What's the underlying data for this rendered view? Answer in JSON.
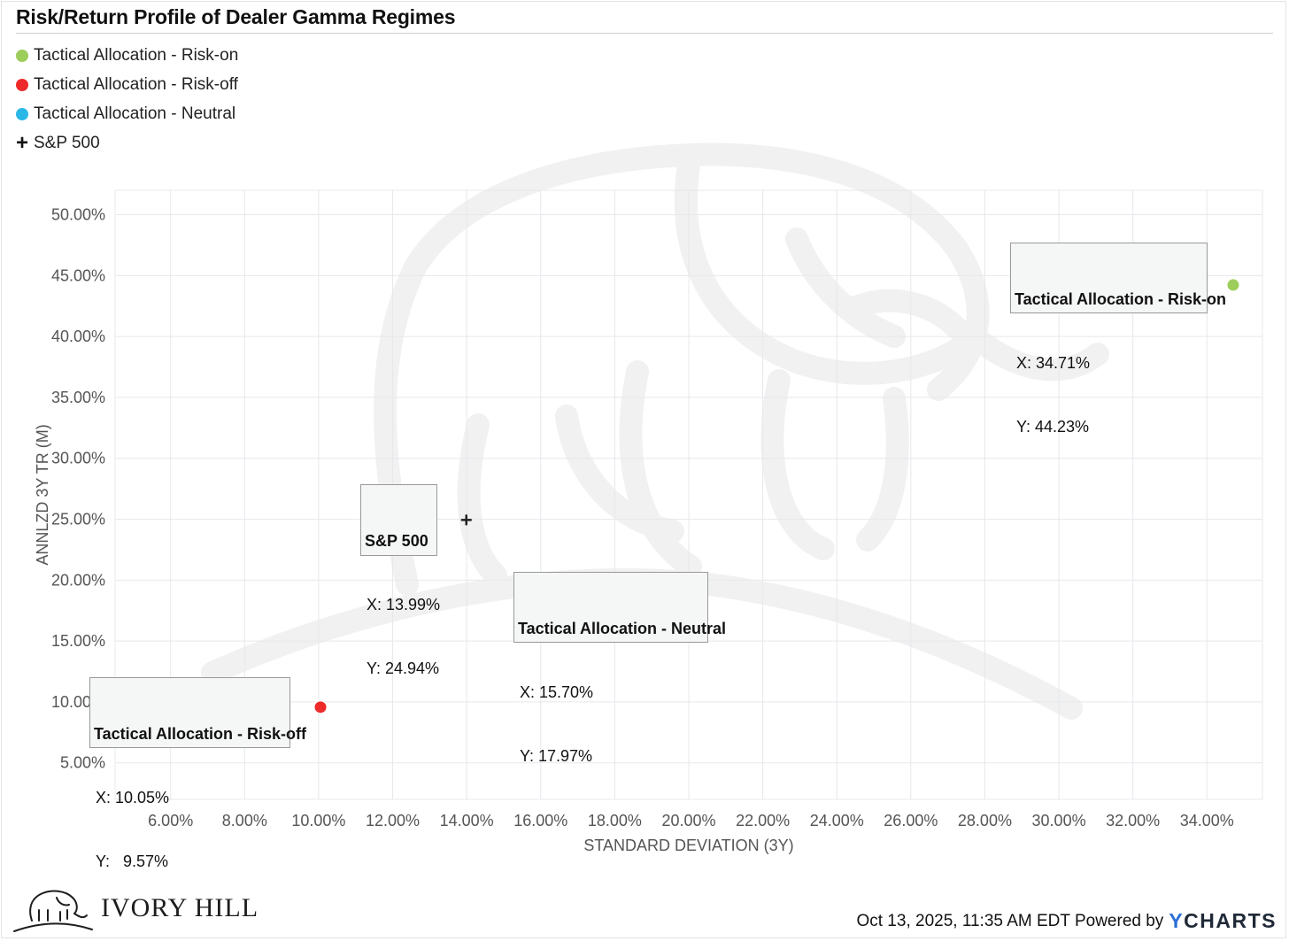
{
  "title": "Risk/Return Profile of Dealer Gamma Regimes",
  "colors": {
    "risk_on": "#9dcd5a",
    "risk_off": "#ee2a2a",
    "neutral": "#2ab7e8",
    "sp500": "#222222"
  },
  "legend": [
    {
      "label": "Tactical Allocation - Risk-on",
      "marker": "circle",
      "color": "#9dcd5a"
    },
    {
      "label": "Tactical Allocation - Risk-off",
      "marker": "circle",
      "color": "#ee2a2a"
    },
    {
      "label": "Tactical Allocation - Neutral",
      "marker": "circle",
      "color": "#2ab7e8"
    },
    {
      "label": "S&P 500",
      "marker": "plus",
      "color": "#222222"
    }
  ],
  "chart_data": {
    "type": "scatter",
    "title": "Risk/Return Profile of Dealer Gamma Regimes",
    "xlabel": "STANDARD DEVIATION (3Y)",
    "ylabel": "ANNLZD 3Y TR (M)",
    "xlim": [
      4.5,
      35.5
    ],
    "ylim": [
      2.0,
      52.0
    ],
    "x_ticks": [
      "6.00%",
      "8.00%",
      "10.00%",
      "12.00%",
      "14.00%",
      "16.00%",
      "18.00%",
      "20.00%",
      "22.00%",
      "24.00%",
      "26.00%",
      "28.00%",
      "30.00%",
      "32.00%",
      "34.00%"
    ],
    "y_ticks": [
      "5.00%",
      "10.00%",
      "15.00%",
      "20.00%",
      "25.00%",
      "30.00%",
      "35.00%",
      "40.00%",
      "45.00%",
      "50.00%"
    ],
    "grid": true,
    "legend_position": "top-left",
    "series": [
      {
        "name": "Tactical Allocation - Risk-on",
        "x": 34.71,
        "y": 44.23,
        "marker": "circle",
        "color": "#9dcd5a",
        "tooltip": {
          "title": "Tactical Allocation - Risk-on",
          "x_line": "X: 34.71%",
          "y_line": "Y: 44.23%"
        }
      },
      {
        "name": "Tactical Allocation - Risk-off",
        "x": 10.05,
        "y": 9.57,
        "marker": "circle",
        "color": "#ee2a2a",
        "tooltip": {
          "title": "Tactical Allocation - Risk-off",
          "x_line": "X: 10.05%",
          "y_line": "Y:   9.57%"
        }
      },
      {
        "name": "Tactical Allocation - Neutral",
        "x": 15.7,
        "y": 17.97,
        "marker": "circle",
        "color": "#2ab7e8",
        "tooltip": {
          "title": "Tactical Allocation - Neutral",
          "x_line": "X: 15.70%",
          "y_line": "Y: 17.97%"
        }
      },
      {
        "name": "S&P 500",
        "x": 13.99,
        "y": 24.94,
        "marker": "plus",
        "color": "#222222",
        "tooltip": {
          "title": "S&P 500",
          "x_line": "X: 13.99%",
          "y_line": "Y: 24.94%"
        }
      }
    ]
  },
  "branding": {
    "company": "IVORY HILL",
    "logo_icon": "elephant-icon"
  },
  "footer": {
    "timestamp": "Oct 13, 2025, 11:35 AM EDT",
    "powered_by": "Powered by",
    "provider_y": "Y",
    "provider_rest": "CHARTS"
  }
}
